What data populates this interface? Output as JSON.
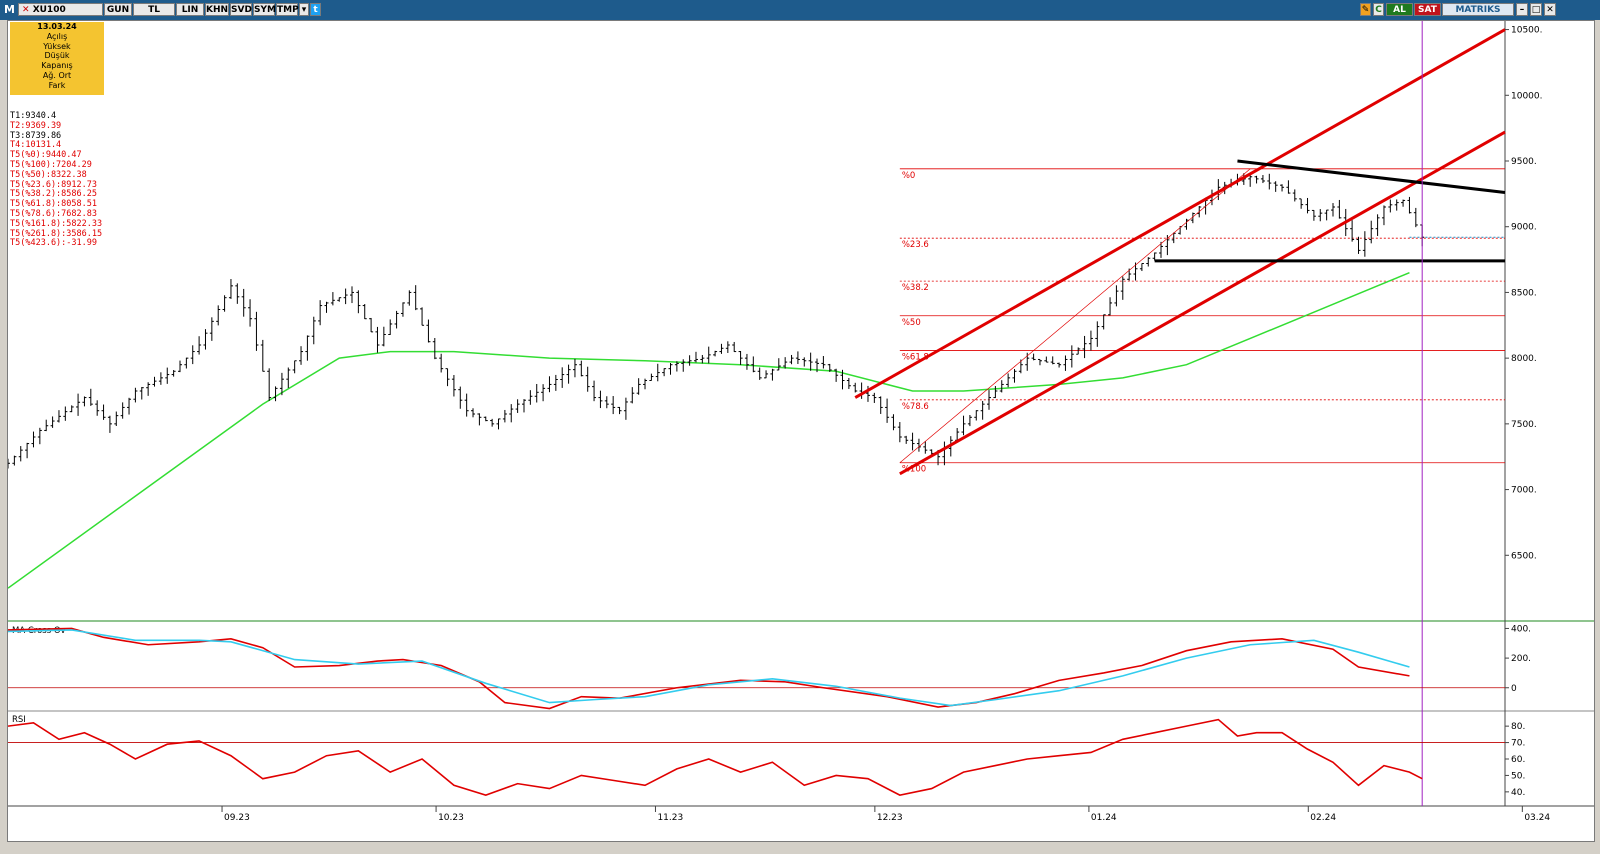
{
  "toolbar": {
    "logo": "M",
    "symbol": "XU100",
    "buttons": [
      "GUN",
      "TL",
      "LIN",
      "KHN",
      "SVD",
      "SYM",
      "TMP"
    ],
    "al_label": "AL",
    "sat_label": "SAT",
    "brand": "MATRIKS",
    "colors": {
      "bar": "#1e5b8c",
      "al": "#1f7a1f",
      "sat": "#c0141c"
    }
  },
  "info_box": {
    "date": "13.03.24",
    "fields": [
      "Açılış",
      "Yüksek",
      "Düşük",
      "Kapanış",
      "Ağ. Ort",
      "Fark"
    ]
  },
  "stats": [
    {
      "text": "T1:9340.4",
      "color": "#000000"
    },
    {
      "text": "T2:9369.39",
      "color": "#e00000"
    },
    {
      "text": "T3:8739.86",
      "color": "#000000"
    },
    {
      "text": "T4:10131.4",
      "color": "#e00000"
    },
    {
      "text": "T5(%0):9440.47",
      "color": "#e00000"
    },
    {
      "text": "T5(%100):7204.29",
      "color": "#e00000"
    },
    {
      "text": "T5(%50):8322.38",
      "color": "#e00000"
    },
    {
      "text": "T5(%23.6):8912.73",
      "color": "#e00000"
    },
    {
      "text": "T5(%38.2):8586.25",
      "color": "#e00000"
    },
    {
      "text": "T5(%61.8):8058.51",
      "color": "#e00000"
    },
    {
      "text": "T5(%78.6):7682.83",
      "color": "#e00000"
    },
    {
      "text": "T5(%161.8):5822.33",
      "color": "#e00000"
    },
    {
      "text": "T5(%261.8):3586.15",
      "color": "#e00000"
    },
    {
      "text": "T5(%423.6):-31.99",
      "color": "#e00000"
    }
  ],
  "chart_data": [
    {
      "type": "ohlc",
      "title": "XU100",
      "y_ticks": [
        6500,
        7000,
        7500,
        8000,
        8500,
        9000,
        9500,
        10000,
        10500
      ],
      "y_tick_labels": [
        "6500.",
        "7000.",
        "7500.",
        "8000.",
        "8500.",
        "9000.",
        "9500.",
        "10000.",
        "10500."
      ],
      "ylim": [
        6000,
        10550
      ],
      "x_labels": [
        "09.23",
        "10.23",
        "11.23",
        "12.23",
        "01.24",
        "02.24",
        "03.24"
      ],
      "price_trace": [
        [
          0,
          7200
        ],
        [
          5,
          7450
        ],
        [
          12,
          7700
        ],
        [
          16,
          7500
        ],
        [
          20,
          7750
        ],
        [
          26,
          7900
        ],
        [
          30,
          8100
        ],
        [
          35,
          8550
        ],
        [
          38,
          8300
        ],
        [
          41,
          7700
        ],
        [
          46,
          8050
        ],
        [
          49,
          8400
        ],
        [
          54,
          8500
        ],
        [
          58,
          8100
        ],
        [
          63,
          8500
        ],
        [
          67,
          8000
        ],
        [
          72,
          7600
        ],
        [
          76,
          7500
        ],
        [
          80,
          7650
        ],
        [
          85,
          7800
        ],
        [
          89,
          7950
        ],
        [
          92,
          7700
        ],
        [
          96,
          7600
        ],
        [
          99,
          7800
        ],
        [
          104,
          7950
        ],
        [
          109,
          8000
        ],
        [
          113,
          8100
        ],
        [
          118,
          7850
        ],
        [
          123,
          8000
        ],
        [
          128,
          7950
        ],
        [
          133,
          7750
        ],
        [
          136,
          7700
        ],
        [
          140,
          7400
        ],
        [
          146,
          7250
        ],
        [
          150,
          7500
        ],
        [
          155,
          7750
        ],
        [
          160,
          8000
        ],
        [
          165,
          7950
        ],
        [
          170,
          8150
        ],
        [
          175,
          8600
        ],
        [
          180,
          8800
        ],
        [
          185,
          9050
        ],
        [
          190,
          9300
        ],
        [
          195,
          9380
        ],
        [
          200,
          9300
        ],
        [
          205,
          9080
        ],
        [
          208,
          9150
        ],
        [
          212,
          8820
        ],
        [
          216,
          9150
        ],
        [
          219,
          9200
        ],
        [
          222,
          8920
        ]
      ],
      "moving_average": [
        [
          0,
          6250
        ],
        [
          20,
          6950
        ],
        [
          40,
          7650
        ],
        [
          52,
          8000
        ],
        [
          60,
          8050
        ],
        [
          70,
          8050
        ],
        [
          85,
          8000
        ],
        [
          100,
          7980
        ],
        [
          115,
          7950
        ],
        [
          130,
          7900
        ],
        [
          142,
          7750
        ],
        [
          150,
          7750
        ],
        [
          165,
          7800
        ],
        [
          175,
          7850
        ],
        [
          185,
          7950
        ],
        [
          195,
          8150
        ],
        [
          205,
          8350
        ],
        [
          215,
          8550
        ],
        [
          220,
          8650
        ]
      ],
      "x_domain": [
        0,
        235
      ],
      "fibonacci_levels": [
        {
          "label": "%0",
          "value": 9440.47,
          "style": "solid"
        },
        {
          "label": "%23.6",
          "value": 8912.73,
          "style": "dashed"
        },
        {
          "label": "%38.2",
          "value": 8586.25,
          "style": "dashed"
        },
        {
          "label": "%50",
          "value": 8322.38,
          "style": "solid"
        },
        {
          "label": "%61.8",
          "value": 8058.51,
          "style": "solid"
        },
        {
          "label": "%78.6",
          "value": 7682.83,
          "style": "dashed"
        },
        {
          "label": "%100",
          "value": 7204.29,
          "style": "solid"
        }
      ],
      "fib_x_range": [
        140,
        235
      ],
      "trend_lines": [
        {
          "color": "#e00000",
          "from": [
            133,
            7700
          ],
          "to": [
            235,
            10500
          ]
        },
        {
          "color": "#e00000",
          "from": [
            140,
            7120
          ],
          "to": [
            235,
            9720
          ]
        },
        {
          "color": "#000000",
          "from": [
            193,
            9500
          ],
          "to": [
            235,
            9260
          ]
        },
        {
          "color": "#000000",
          "from": [
            180,
            8740
          ],
          "to": [
            235,
            8740
          ]
        }
      ],
      "current_price_line": {
        "value": 8920,
        "color": "#1e90c8"
      },
      "vertical_marker_x": 222,
      "colors": {
        "bars": "#000000",
        "ma": "#33dd33",
        "fib": "#e00000"
      }
    },
    {
      "type": "line",
      "title": "MA Cross Ov",
      "y_ticks": [
        0,
        200,
        400
      ],
      "y_tick_labels": [
        "0",
        "200.",
        "400."
      ],
      "ylim": [
        -150,
        430
      ],
      "reference_line": 0,
      "series": [
        {
          "color": "#e00000",
          "values": [
            [
              0,
              390
            ],
            [
              10,
              400
            ],
            [
              15,
              340
            ],
            [
              22,
              290
            ],
            [
              30,
              310
            ],
            [
              35,
              330
            ],
            [
              40,
              270
            ],
            [
              45,
              140
            ],
            [
              52,
              150
            ],
            [
              58,
              180
            ],
            [
              62,
              190
            ],
            [
              68,
              150
            ],
            [
              74,
              40
            ],
            [
              78,
              -100
            ],
            [
              85,
              -140
            ],
            [
              90,
              -60
            ],
            [
              96,
              -70
            ],
            [
              105,
              0
            ],
            [
              115,
              50
            ],
            [
              122,
              40
            ],
            [
              128,
              0
            ],
            [
              138,
              -60
            ],
            [
              146,
              -130
            ],
            [
              152,
              -100
            ],
            [
              158,
              -40
            ],
            [
              165,
              50
            ],
            [
              172,
              100
            ],
            [
              178,
              150
            ],
            [
              185,
              250
            ],
            [
              192,
              310
            ],
            [
              200,
              330
            ],
            [
              208,
              260
            ],
            [
              212,
              140
            ],
            [
              220,
              80
            ]
          ]
        },
        {
          "color": "#33ccee",
          "values": [
            [
              0,
              380
            ],
            [
              10,
              390
            ],
            [
              20,
              320
            ],
            [
              30,
              320
            ],
            [
              35,
              310
            ],
            [
              45,
              190
            ],
            [
              55,
              160
            ],
            [
              65,
              180
            ],
            [
              75,
              30
            ],
            [
              85,
              -100
            ],
            [
              92,
              -80
            ],
            [
              100,
              -60
            ],
            [
              110,
              20
            ],
            [
              120,
              60
            ],
            [
              130,
              10
            ],
            [
              140,
              -70
            ],
            [
              148,
              -120
            ],
            [
              155,
              -80
            ],
            [
              165,
              -20
            ],
            [
              175,
              80
            ],
            [
              185,
              200
            ],
            [
              195,
              290
            ],
            [
              205,
              320
            ],
            [
              212,
              240
            ],
            [
              220,
              140
            ]
          ]
        }
      ]
    },
    {
      "type": "line",
      "title": "RSI",
      "y_ticks": [
        40,
        50,
        60,
        70,
        80
      ],
      "y_tick_labels": [
        "40.",
        "50.",
        "60.",
        "70.",
        "80."
      ],
      "ylim": [
        32,
        88
      ],
      "reference_line": 70,
      "series": [
        {
          "color": "#e00000",
          "values": [
            [
              0,
              80
            ],
            [
              4,
              82
            ],
            [
              8,
              72
            ],
            [
              12,
              76
            ],
            [
              16,
              69
            ],
            [
              20,
              60
            ],
            [
              25,
              69
            ],
            [
              30,
              71
            ],
            [
              35,
              62
            ],
            [
              40,
              48
            ],
            [
              45,
              52
            ],
            [
              50,
              62
            ],
            [
              55,
              65
            ],
            [
              60,
              52
            ],
            [
              65,
              60
            ],
            [
              70,
              44
            ],
            [
              75,
              38
            ],
            [
              80,
              45
            ],
            [
              85,
              42
            ],
            [
              90,
              50
            ],
            [
              95,
              47
            ],
            [
              100,
              44
            ],
            [
              105,
              54
            ],
            [
              110,
              60
            ],
            [
              115,
              52
            ],
            [
              120,
              58
            ],
            [
              125,
              44
            ],
            [
              130,
              50
            ],
            [
              135,
              48
            ],
            [
              140,
              38
            ],
            [
              145,
              42
            ],
            [
              150,
              52
            ],
            [
              155,
              56
            ],
            [
              160,
              60
            ],
            [
              165,
              62
            ],
            [
              170,
              64
            ],
            [
              175,
              72
            ],
            [
              180,
              76
            ],
            [
              185,
              80
            ],
            [
              190,
              84
            ],
            [
              193,
              74
            ],
            [
              196,
              76
            ],
            [
              200,
              76
            ],
            [
              204,
              66
            ],
            [
              208,
              58
            ],
            [
              212,
              44
            ],
            [
              216,
              56
            ],
            [
              220,
              52
            ],
            [
              222,
              48
            ]
          ]
        }
      ]
    }
  ]
}
